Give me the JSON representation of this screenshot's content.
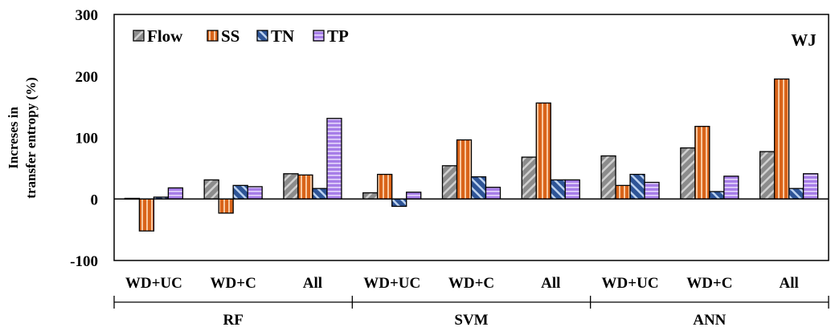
{
  "chart_data": {
    "type": "bar",
    "title": "",
    "annotation": "WJ",
    "ylabel_line1": "Increses in",
    "ylabel_line2": "transfer entropy (%)",
    "xlabel": "",
    "ylim": [
      -100,
      300
    ],
    "yticks": [
      "-100",
      "0",
      "100",
      "200",
      "300"
    ],
    "ytick_values": [
      -100,
      0,
      100,
      200,
      300
    ],
    "grid": false,
    "legend_position": "top-left",
    "categories": [
      "WD+UC",
      "WD+C",
      "All",
      "WD+UC",
      "WD+C",
      "All",
      "WD+UC",
      "WD+C",
      "All"
    ],
    "groups": [
      {
        "label": "RF",
        "span": [
          0,
          2
        ]
      },
      {
        "label": "SVM",
        "span": [
          3,
          5
        ]
      },
      {
        "label": "ANN",
        "span": [
          6,
          8
        ]
      }
    ],
    "series": [
      {
        "name": "Flow",
        "color": "#8c8c8c",
        "values": [
          1,
          31,
          41,
          10,
          54,
          68,
          70,
          83,
          77
        ]
      },
      {
        "name": "SS",
        "color": "#d9641a",
        "values": [
          -52,
          -23,
          39,
          40,
          96,
          156,
          22,
          118,
          195
        ]
      },
      {
        "name": "TN",
        "color": "#2f5597",
        "values": [
          3,
          22,
          17,
          -12,
          36,
          31,
          40,
          12,
          17
        ]
      },
      {
        "name": "TP",
        "color": "#a77ee8",
        "values": [
          18,
          20,
          131,
          11,
          19,
          31,
          27,
          37,
          41
        ]
      }
    ]
  }
}
